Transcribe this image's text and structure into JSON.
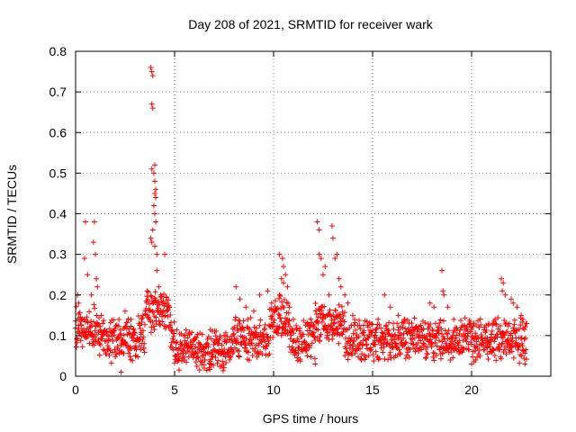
{
  "chart_data": {
    "type": "scatter",
    "title": "Day 208 of 2021, SRMTID for receiver wark",
    "xlabel": "GPS time / hours",
    "ylabel": "SRMTID / TECUs",
    "xlim": [
      0,
      24
    ],
    "ylim": [
      0,
      0.8
    ],
    "xticks": [
      0,
      5,
      10,
      15,
      20
    ],
    "yticks": [
      0,
      0.1,
      0.2,
      0.3,
      0.4,
      0.5,
      0.6,
      0.7,
      0.8
    ],
    "xtick_labels": [
      "0",
      "5",
      "10",
      "15",
      "20"
    ],
    "ytick_labels": [
      "0",
      "0.1",
      "0.2",
      "0.3",
      "0.4",
      "0.5",
      "0.6",
      "0.7",
      "0.8"
    ],
    "grid": true,
    "marker": "+",
    "color": "#ff0000",
    "series": [
      {
        "name": "SRMTID",
        "x_range": [
          0,
          22.8
        ],
        "baseline_level": 0.09,
        "points": [
          [
            0.1,
            0.2
          ],
          [
            0.15,
            0.18
          ],
          [
            0.3,
            0.14
          ],
          [
            0.45,
            0.29
          ],
          [
            0.5,
            0.38
          ],
          [
            0.6,
            0.25
          ],
          [
            0.8,
            0.2
          ],
          [
            0.9,
            0.33
          ],
          [
            0.95,
            0.38
          ],
          [
            1.0,
            0.3
          ],
          [
            1.05,
            0.24
          ],
          [
            1.1,
            0.22
          ],
          [
            1.3,
            0.15
          ],
          [
            2.3,
            0.01
          ],
          [
            2.5,
            0.16
          ],
          [
            2.8,
            0.14
          ],
          [
            3.2,
            0.13
          ],
          [
            3.4,
            0.15
          ],
          [
            3.8,
            0.76
          ],
          [
            3.85,
            0.75
          ],
          [
            3.9,
            0.74
          ],
          [
            3.85,
            0.67
          ],
          [
            3.9,
            0.66
          ],
          [
            3.85,
            0.51
          ],
          [
            4.0,
            0.52
          ],
          [
            3.95,
            0.5
          ],
          [
            4.0,
            0.48
          ],
          [
            4.05,
            0.46
          ],
          [
            4.0,
            0.45
          ],
          [
            4.05,
            0.44
          ],
          [
            3.95,
            0.42
          ],
          [
            4.0,
            0.4
          ],
          [
            4.05,
            0.38
          ],
          [
            3.9,
            0.36
          ],
          [
            3.8,
            0.34
          ],
          [
            3.85,
            0.33
          ],
          [
            4.0,
            0.32
          ],
          [
            4.1,
            0.3
          ],
          [
            4.5,
            0.3
          ],
          [
            4.1,
            0.26
          ],
          [
            4.2,
            0.22
          ],
          [
            4.3,
            0.2
          ],
          [
            4.4,
            0.18
          ],
          [
            4.6,
            0.16
          ],
          [
            5.5,
            0.04
          ],
          [
            6.5,
            0.02
          ],
          [
            6.8,
            0.03
          ],
          [
            7.2,
            0.08
          ],
          [
            7.5,
            0.1
          ],
          [
            8.1,
            0.22
          ],
          [
            8.3,
            0.19
          ],
          [
            8.6,
            0.17
          ],
          [
            9.0,
            0.16
          ],
          [
            9.3,
            0.2
          ],
          [
            9.7,
            0.21
          ],
          [
            9.9,
            0.18
          ],
          [
            10.3,
            0.3
          ],
          [
            10.45,
            0.29
          ],
          [
            10.5,
            0.27
          ],
          [
            10.6,
            0.25
          ],
          [
            10.4,
            0.24
          ],
          [
            10.5,
            0.23
          ],
          [
            10.7,
            0.22
          ],
          [
            10.3,
            0.2
          ],
          [
            10.8,
            0.17
          ],
          [
            11.0,
            0.14
          ],
          [
            12.1,
            0.03
          ],
          [
            12.2,
            0.38
          ],
          [
            12.3,
            0.36
          ],
          [
            12.3,
            0.3
          ],
          [
            12.4,
            0.29
          ],
          [
            12.6,
            0.27
          ],
          [
            12.5,
            0.25
          ],
          [
            12.8,
            0.2
          ],
          [
            12.95,
            0.37
          ],
          [
            13.0,
            0.34
          ],
          [
            13.2,
            0.3
          ],
          [
            13.1,
            0.29
          ],
          [
            13.3,
            0.24
          ],
          [
            13.4,
            0.22
          ],
          [
            13.6,
            0.2
          ],
          [
            13.75,
            0.18
          ],
          [
            14.0,
            0.15
          ],
          [
            15.6,
            0.2
          ],
          [
            15.9,
            0.17
          ],
          [
            16.3,
            0.15
          ],
          [
            16.6,
            0.14
          ],
          [
            17.9,
            0.18
          ],
          [
            18.1,
            0.17
          ],
          [
            18.5,
            0.26
          ],
          [
            18.55,
            0.21
          ],
          [
            18.6,
            0.2
          ],
          [
            18.8,
            0.17
          ],
          [
            19.1,
            0.14
          ],
          [
            20.0,
            0.03
          ],
          [
            20.2,
            0.04
          ],
          [
            20.8,
            0.07
          ],
          [
            21.5,
            0.24
          ],
          [
            21.6,
            0.23
          ],
          [
            21.55,
            0.21
          ],
          [
            21.7,
            0.2
          ],
          [
            22.0,
            0.19
          ],
          [
            22.1,
            0.18
          ],
          [
            22.3,
            0.17
          ],
          [
            22.5,
            0.15
          ],
          [
            22.6,
            0.14
          ],
          [
            22.7,
            0.03
          ]
        ]
      }
    ]
  }
}
